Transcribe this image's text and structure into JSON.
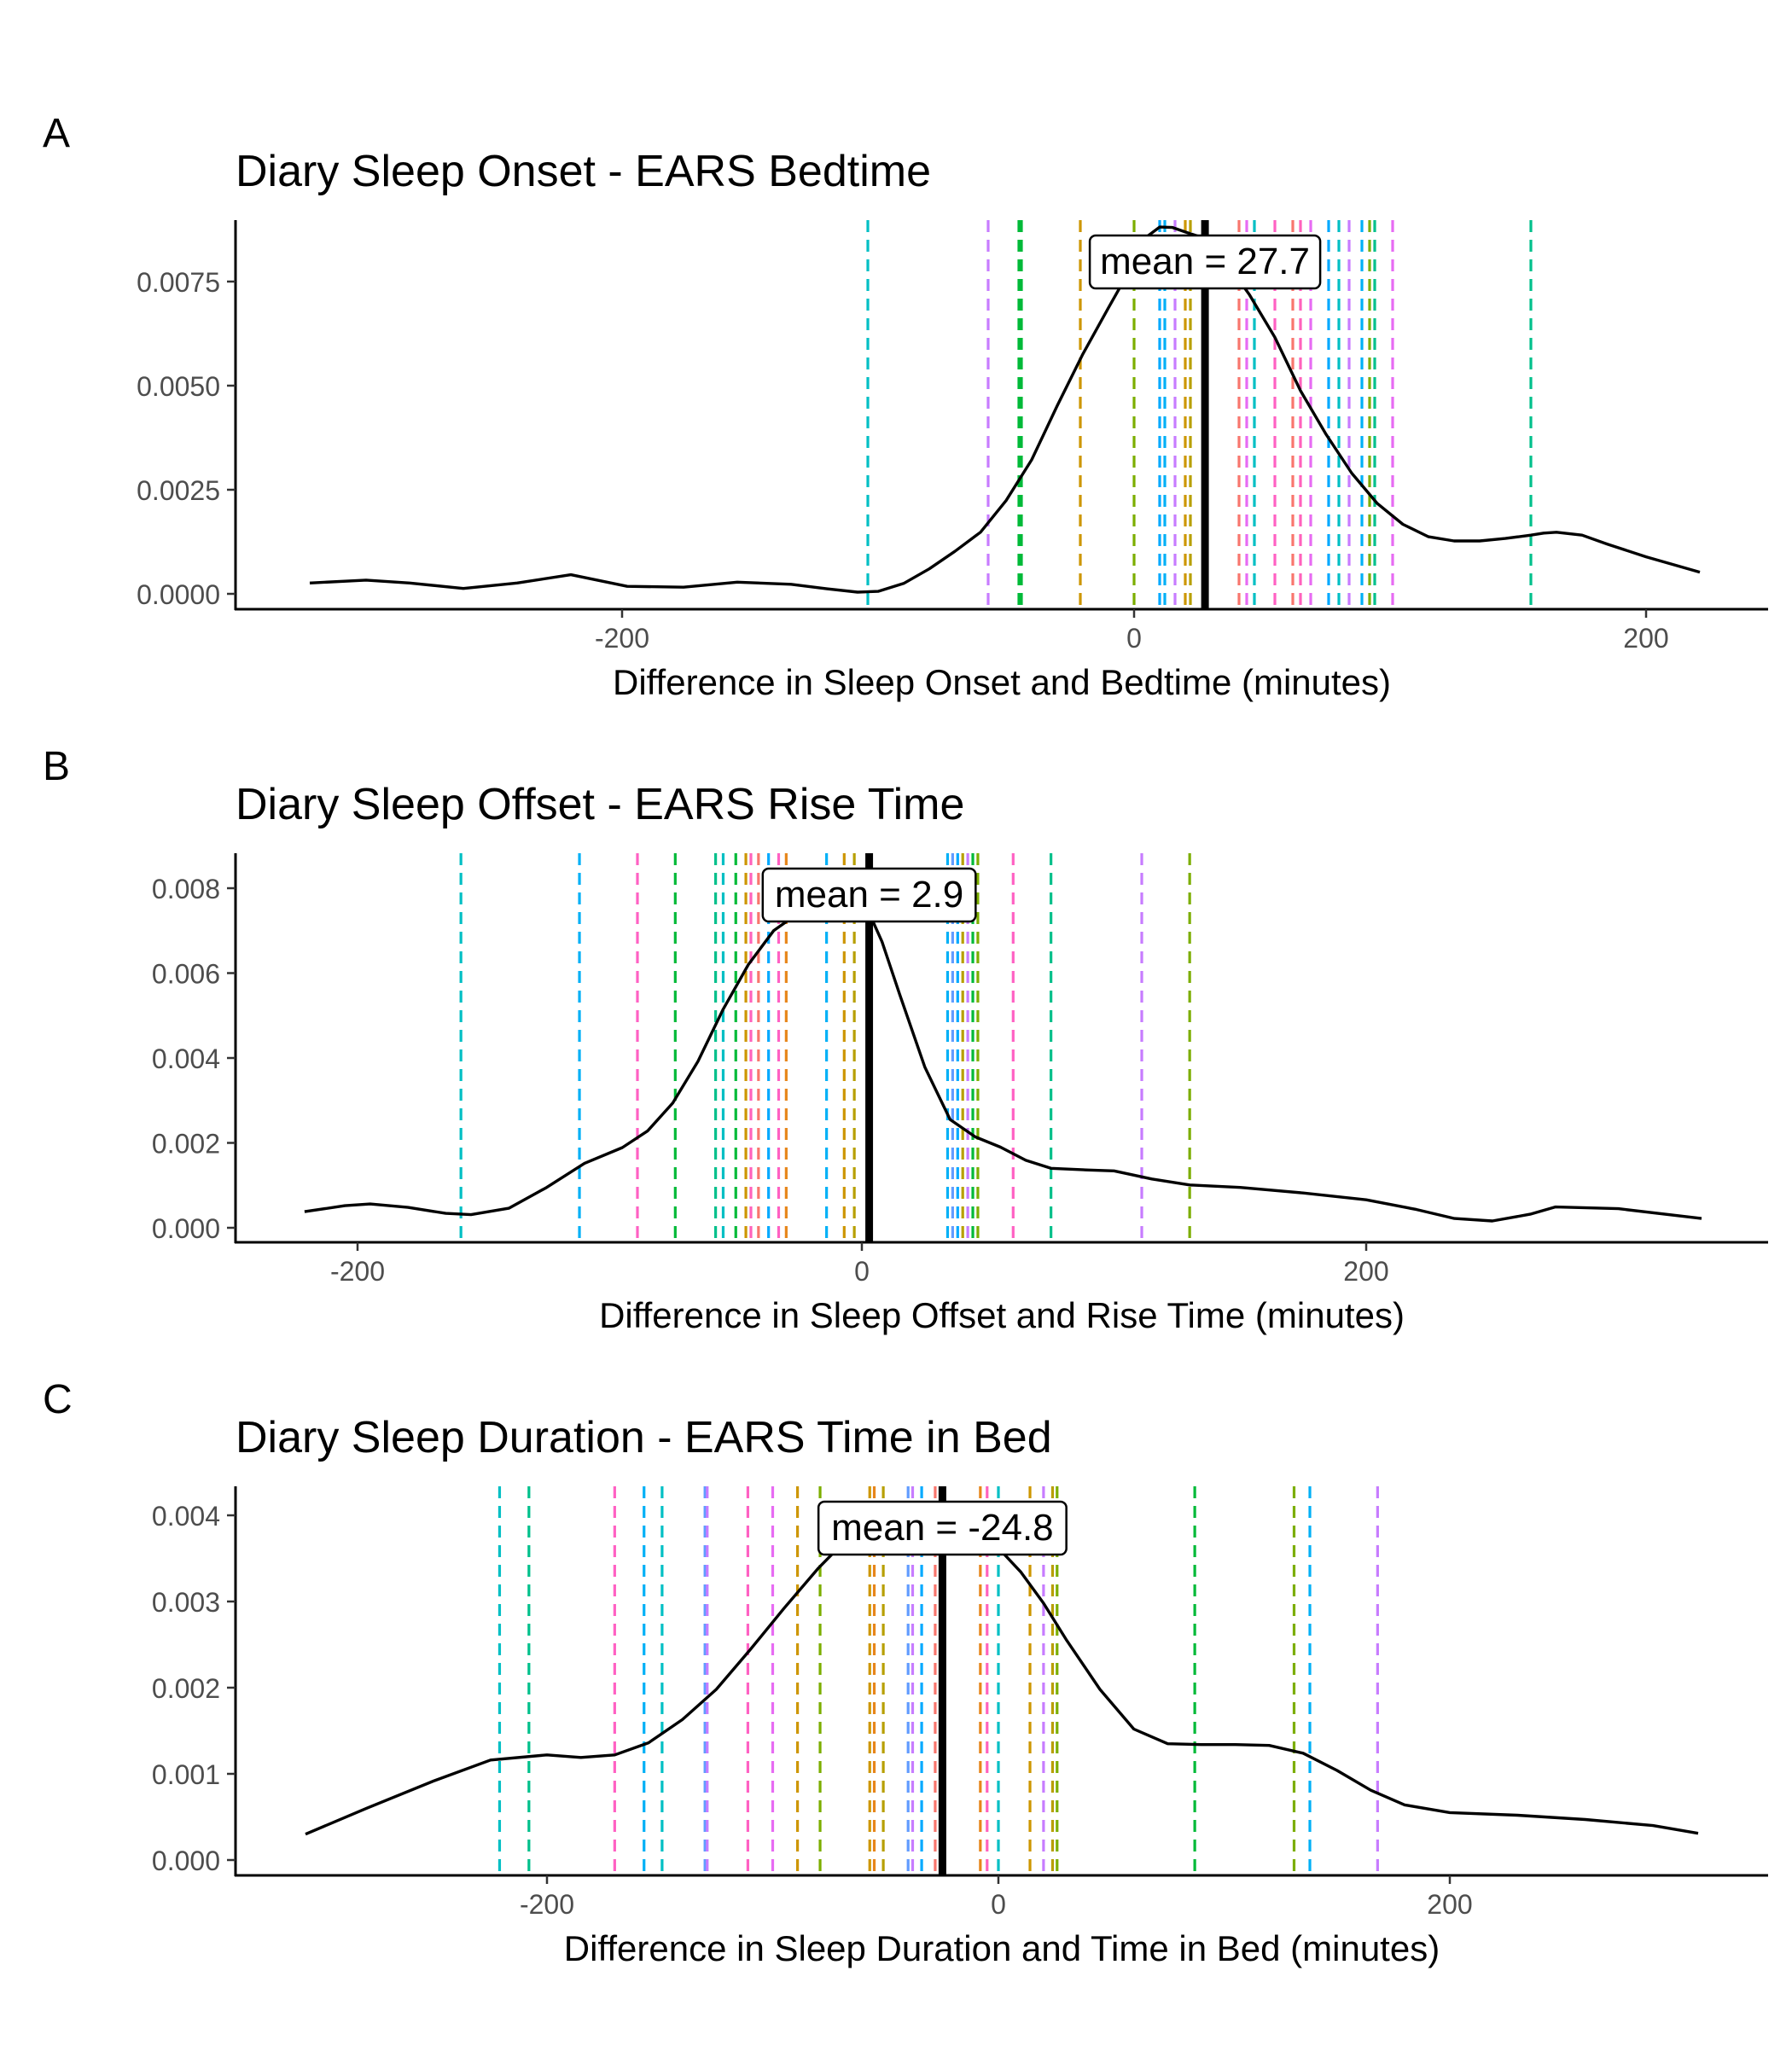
{
  "chart_data": [
    {
      "type": "density",
      "panel_label": "A",
      "title": "Diary Sleep Onset - EARS Bedtime",
      "xlabel": "Difference in Sleep Onset and Bedtime (minutes)",
      "ylabel": "",
      "xlim": [
        -350,
        250
      ],
      "ylim": [
        -0.0004,
        0.009
      ],
      "x_ticks": [
        -200,
        0,
        200
      ],
      "x_tick_labels": [
        "-200",
        "0",
        "200"
      ],
      "y_ticks": [
        0,
        0.0025,
        0.005,
        0.0075
      ],
      "y_tick_labels": [
        "0.0000",
        "0.0025",
        "0.0050",
        "0.0075"
      ],
      "grid": false,
      "mean": 27.7,
      "mean_label": "mean =  27.7",
      "density": {
        "x": [
          -322,
          -300,
          -283,
          -262,
          -241,
          -220,
          -198,
          -176,
          -155,
          -134,
          -120,
          -108,
          -100,
          -90,
          -80,
          -70,
          -60,
          -50,
          -40,
          -30,
          -20,
          -10,
          0,
          5,
          10,
          15,
          20,
          27,
          35,
          45,
          55,
          65,
          75,
          85,
          95,
          105,
          115,
          125,
          135,
          145,
          155,
          160,
          165,
          175,
          185,
          200,
          221
        ],
        "y": [
          0.00026,
          0.00033,
          0.00026,
          0.00013,
          0.00026,
          0.00046,
          0.00018,
          0.00016,
          0.00028,
          0.00023,
          0.00012,
          4e-05,
          6e-05,
          0.00025,
          0.0006,
          0.00102,
          0.00148,
          0.00224,
          0.00322,
          0.00452,
          0.00576,
          0.00687,
          0.00796,
          0.00858,
          0.00881,
          0.0088,
          0.00869,
          0.00855,
          0.00804,
          0.00719,
          0.00616,
          0.00488,
          0.00383,
          0.0029,
          0.00217,
          0.00167,
          0.00137,
          0.00127,
          0.00127,
          0.00133,
          0.00141,
          0.00146,
          0.00148,
          0.00141,
          0.00119,
          0.00089,
          0.00052
        ]
      },
      "individual_lines": {
        "x": [
          -104,
          -57,
          -45,
          -44,
          -21,
          0,
          10,
          12,
          16,
          20,
          22,
          28,
          41,
          44,
          47,
          55,
          62,
          65,
          69,
          76,
          80,
          84,
          89,
          92,
          94,
          101,
          155
        ],
        "colors": [
          "#00BFC4",
          "#C77CFF",
          "#00BA38",
          "#00BA38",
          "#CD9600",
          "#7CAE00",
          "#00A9FF",
          "#00B0F6",
          "#C77CFF",
          "#CD9600",
          "#B79F00",
          "#000000",
          "#F8766D",
          "#E76BF3",
          "#00BFC4",
          "#FF61C3",
          "#F8766D",
          "#FF62BC",
          "#E76BF3",
          "#00A9FF",
          "#00BFC4",
          "#C77CFF",
          "#00B0F6",
          "#7CAE00",
          "#00C08B",
          "#E76BF3",
          "#00C08B"
        ]
      }
    },
    {
      "type": "density",
      "panel_label": "B",
      "title": "Diary Sleep Offset - EARS Rise Time",
      "xlabel": "Difference in Sleep Offset and Rise Time (minutes)",
      "ylabel": "",
      "xlim": [
        -250,
        360
      ],
      "ylim": [
        -0.0004,
        0.0088
      ],
      "x_ticks": [
        -200,
        0,
        200
      ],
      "x_tick_labels": [
        "-200",
        "0",
        "200"
      ],
      "y_ticks": [
        0,
        0.002,
        0.004,
        0.006,
        0.008
      ],
      "y_tick_labels": [
        "0.000",
        "0.002",
        "0.004",
        "0.006",
        "0.008"
      ],
      "grid": false,
      "mean": 2.9,
      "mean_label": "mean =  2.9",
      "density": {
        "x": [
          -221,
          -205,
          -195,
          -180,
          -165,
          -155,
          -140,
          -125,
          -110,
          -95,
          -85,
          -75,
          -65,
          -55,
          -45,
          -35,
          -25,
          -15,
          -5,
          0,
          3,
          8,
          15,
          25,
          35,
          45,
          55,
          65,
          75,
          90,
          100,
          115,
          130,
          150,
          175,
          200,
          220,
          235,
          250,
          265,
          275,
          300,
          333
        ],
        "y": [
          0.00038,
          0.00052,
          0.00056,
          0.00048,
          0.00034,
          0.00031,
          0.00046,
          0.00095,
          0.00152,
          0.00189,
          0.00228,
          0.00294,
          0.00392,
          0.00515,
          0.0062,
          0.007,
          0.00742,
          0.00745,
          0.00738,
          0.0075,
          0.0074,
          0.00674,
          0.0055,
          0.00378,
          0.00255,
          0.00214,
          0.0019,
          0.00159,
          0.0014,
          0.00136,
          0.00134,
          0.00115,
          0.00101,
          0.00095,
          0.00082,
          0.00066,
          0.00043,
          0.00022,
          0.00016,
          0.00032,
          0.00049,
          0.00045,
          0.00022
        ]
      },
      "individual_lines": {
        "x": [
          -159,
          -112,
          -89,
          -74,
          -58,
          -55,
          -50,
          -46,
          -44,
          -41,
          -37,
          -33,
          -30,
          -14,
          -7,
          -3,
          4,
          34,
          36,
          38,
          40,
          42,
          44,
          46,
          60,
          75,
          111,
          130
        ],
        "colors": [
          "#00BFC4",
          "#00B0F6",
          "#FF61C3",
          "#00BA38",
          "#00C08B",
          "#00BFC4",
          "#00BA38",
          "#CD9600",
          "#FF62BC",
          "#F8766D",
          "#00A9FF",
          "#FF61C3",
          "#E7861B",
          "#00B0F6",
          "#CD9600",
          "#B79F00",
          "#000000",
          "#00B0F6",
          "#619CFF",
          "#00A9FF",
          "#B79F00",
          "#C77CFF",
          "#00BA38",
          "#7CAE00",
          "#FF61C3",
          "#00C08B",
          "#C77CFF",
          "#7CAE00"
        ]
      }
    },
    {
      "type": "density",
      "panel_label": "C",
      "title": "Diary Sleep Duration - EARS Time in Bed",
      "xlabel": "Difference in Sleep Duration and Time in Bed (minutes)",
      "ylabel": "",
      "xlim": [
        -340,
        340
      ],
      "ylim": [
        -0.00018,
        0.0043
      ],
      "x_ticks": [
        -200,
        0,
        200
      ],
      "x_tick_labels": [
        "-200",
        "0",
        "200"
      ],
      "y_ticks": [
        0,
        0.001,
        0.002,
        0.003,
        0.004
      ],
      "y_tick_labels": [
        "0.000",
        "0.001",
        "0.002",
        "0.003",
        "0.004"
      ],
      "grid": false,
      "mean": -24.8,
      "mean_label": "mean =  -24.8",
      "density": {
        "x": [
          -307,
          -280,
          -250,
          -225,
          -200,
          -185,
          -170,
          -155,
          -140,
          -125,
          -110,
          -95,
          -80,
          -65,
          -50,
          -40,
          -30,
          -20,
          -10,
          0,
          10,
          20,
          30,
          45,
          60,
          75,
          90,
          105,
          120,
          135,
          150,
          165,
          180,
          200,
          230,
          260,
          290,
          310
        ],
        "y": [
          0.0003,
          0.0006,
          0.00092,
          0.00116,
          0.00122,
          0.00119,
          0.00122,
          0.00136,
          0.00163,
          0.00198,
          0.00244,
          0.00292,
          0.00338,
          0.00378,
          0.00402,
          0.00407,
          0.00404,
          0.00397,
          0.00385,
          0.00362,
          0.00334,
          0.00298,
          0.00256,
          0.00198,
          0.00152,
          0.00135,
          0.00134,
          0.00134,
          0.00133,
          0.00124,
          0.00104,
          0.00081,
          0.00064,
          0.00055,
          0.00052,
          0.00047,
          0.0004,
          0.00031
        ]
      },
      "individual_lines": {
        "x": [
          -221,
          -208,
          -170,
          -157,
          -149,
          -130,
          -129,
          -111,
          -100,
          -89,
          -79,
          -57,
          -55,
          -51,
          -40,
          -38,
          -34,
          -28,
          -25,
          -8,
          -5,
          0,
          14,
          20,
          24,
          26,
          87,
          131,
          138,
          168
        ],
        "colors": [
          "#00BFC4",
          "#00C08B",
          "#FF61C3",
          "#00B0F6",
          "#00BFC4",
          "#619CFF",
          "#C77CFF",
          "#FF61C3",
          "#E76BF3",
          "#CD9600",
          "#7CAE00",
          "#CD9600",
          "#E7861B",
          "#B79F00",
          "#619CFF",
          "#C77CFF",
          "#00A9FF",
          "#F8766D",
          "#000000",
          "#E7861B",
          "#FF62BC",
          "#00BFC4",
          "#CD9600",
          "#C77CFF",
          "#B79F00",
          "#7CAE00",
          "#00BA38",
          "#7CAE00",
          "#00B0F6",
          "#C77CFF"
        ]
      }
    }
  ]
}
